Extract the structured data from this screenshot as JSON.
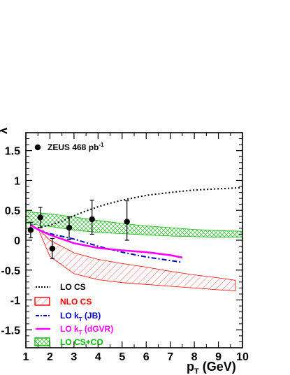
{
  "chart_data": {
    "type": "scatter",
    "title": "",
    "xlabel": "p",
    "xlabel_sub": "T",
    "xlabel_unit": " (GeV)",
    "ylabel": "λ",
    "xlim": [
      1,
      10
    ],
    "ylim": [
      -1.8,
      1.8
    ],
    "grid": false,
    "xticks": [
      1,
      2,
      3,
      4,
      5,
      6,
      7,
      8,
      9,
      10
    ],
    "yticks": [
      {
        "v": 1.5,
        "label": "1.5"
      },
      {
        "v": 1.0,
        "label": "1"
      },
      {
        "v": 0.5,
        "label": "0.5"
      },
      {
        "v": 0.0,
        "label": "0"
      },
      {
        "v": -0.5,
        "label": "-0.5"
      },
      {
        "v": -1.0,
        "label": "-1"
      },
      {
        "v": -1.5,
        "label": "-1.5"
      }
    ],
    "data_legend": {
      "text": "ZEUS 468 pb",
      "sup": "-1"
    },
    "zeus_points": [
      {
        "x": 1.2,
        "y": 0.17,
        "err_low": 0.13,
        "err_high": 0.13
      },
      {
        "x": 1.6,
        "y": 0.38,
        "err_low": 0.17,
        "err_high": 0.17
      },
      {
        "x": 2.1,
        "y": -0.14,
        "err_low": 0.17,
        "err_high": 0.17
      },
      {
        "x": 2.8,
        "y": 0.21,
        "err_low": 0.2,
        "err_high": 0.18
      },
      {
        "x": 3.75,
        "y": 0.35,
        "err_low": 0.25,
        "err_high": 0.32
      },
      {
        "x": 5.2,
        "y": 0.31,
        "err_low": 0.31,
        "err_high": 0.35
      }
    ],
    "series": [
      {
        "name": "LO CS",
        "style": "dotted",
        "color": "#000000",
        "points": [
          [
            1.2,
            0.2
          ],
          [
            1.5,
            0.21
          ],
          [
            2,
            0.25
          ],
          [
            2.5,
            0.32
          ],
          [
            3,
            0.41
          ],
          [
            3.5,
            0.49
          ],
          [
            4,
            0.56
          ],
          [
            4.5,
            0.62
          ],
          [
            5,
            0.67
          ],
          [
            6,
            0.75
          ],
          [
            7,
            0.8
          ],
          [
            8,
            0.84
          ],
          [
            9,
            0.86
          ],
          [
            10,
            0.88
          ]
        ]
      },
      {
        "name": "NLO CS",
        "style": "hatch-band",
        "color": "#ff0000",
        "upper": [
          [
            1.5,
            0.2
          ],
          [
            2,
            0.0
          ],
          [
            3,
            -0.21
          ],
          [
            4,
            -0.32
          ],
          [
            5,
            -0.39
          ],
          [
            6,
            -0.45
          ],
          [
            7,
            -0.52
          ],
          [
            8,
            -0.58
          ],
          [
            9,
            -0.63
          ],
          [
            9.7,
            -0.67
          ]
        ],
        "lower": [
          [
            1.5,
            0.2
          ],
          [
            2,
            -0.27
          ],
          [
            3,
            -0.56
          ],
          [
            4,
            -0.66
          ],
          [
            5,
            -0.71
          ],
          [
            6,
            -0.74
          ],
          [
            7,
            -0.77
          ],
          [
            8,
            -0.8
          ],
          [
            9,
            -0.83
          ],
          [
            9.7,
            -0.85
          ]
        ]
      },
      {
        "name": "LO k",
        "name_sub": "T",
        "name_suffix": " (JB)",
        "style": "dashdot",
        "color": "#0000cc",
        "points": [
          [
            1.2,
            0.26
          ],
          [
            1.5,
            0.18
          ],
          [
            2,
            0.11
          ],
          [
            3,
            0.02
          ],
          [
            4,
            -0.1
          ],
          [
            5,
            -0.2
          ],
          [
            6,
            -0.28
          ],
          [
            7,
            -0.34
          ],
          [
            7.5,
            -0.37
          ]
        ]
      },
      {
        "name": "LO k",
        "name_sub": "T",
        "name_suffix": " (dGVR)",
        "style": "solid",
        "color": "#ff00ff",
        "points": [
          [
            1.2,
            0.26
          ],
          [
            1.5,
            0.18
          ],
          [
            2,
            0.09
          ],
          [
            3,
            -0.05
          ],
          [
            4,
            -0.13
          ],
          [
            5,
            -0.17
          ],
          [
            6,
            -0.2
          ],
          [
            7,
            -0.25
          ],
          [
            7.5,
            -0.29
          ]
        ]
      },
      {
        "name": "LO CS+CO",
        "style": "crosshatch-band",
        "color": "#00bb00",
        "upper": [
          [
            1,
            0.48
          ],
          [
            2,
            0.44
          ],
          [
            3,
            0.39
          ],
          [
            4,
            0.33
          ],
          [
            5,
            0.28
          ],
          [
            6,
            0.24
          ],
          [
            7,
            0.21
          ],
          [
            8,
            0.18
          ],
          [
            9,
            0.16
          ],
          [
            10,
            0.15
          ]
        ],
        "lower": [
          [
            1,
            0.28
          ],
          [
            2,
            0.23
          ],
          [
            3,
            0.17
          ],
          [
            4,
            0.13
          ],
          [
            5,
            0.11
          ],
          [
            6,
            0.09
          ],
          [
            7,
            0.07
          ],
          [
            8,
            0.06
          ],
          [
            9,
            0.05
          ],
          [
            10,
            0.05
          ]
        ]
      }
    ],
    "legend_position": "bottom-left"
  }
}
